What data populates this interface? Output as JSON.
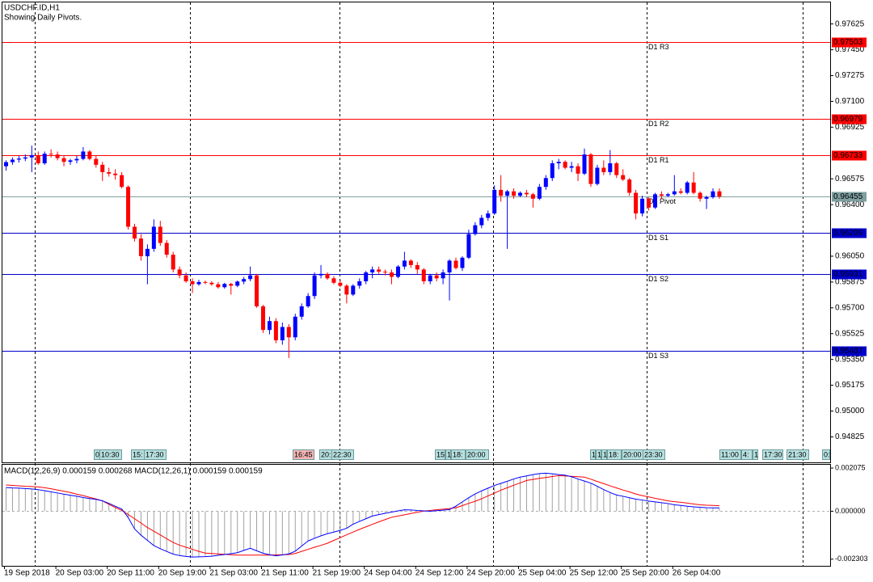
{
  "chart_data": [
    {
      "type": "candlestick",
      "title": "USDCHF.ID,H1",
      "subtitle": "Showing Daily Pivots.",
      "categories": [
        "19 Sep 2018",
        null,
        null,
        null,
        null,
        null,
        null,
        null,
        "20 Sep 03:00",
        null,
        null,
        null,
        null,
        null,
        null,
        null,
        "20 Sep 11:00",
        null,
        null,
        null,
        null,
        null,
        null,
        null,
        "20 Sep 19:00",
        null,
        null,
        null,
        null,
        null,
        null,
        null,
        "21 Sep 03:00",
        null,
        null,
        null,
        null,
        null,
        null,
        null,
        "21 Sep 11:00",
        null,
        null,
        null,
        null,
        null,
        null,
        null,
        "21 Sep 19:00",
        null,
        null,
        null,
        null,
        null,
        null,
        null,
        "24 Sep 04:00",
        null,
        null,
        null,
        null,
        null,
        null,
        null,
        "24 Sep 12:00",
        null,
        null,
        null,
        null,
        null,
        null,
        null,
        "24 Sep 20:00",
        null,
        null,
        null,
        null,
        null,
        null,
        null,
        "25 Sep 04:00",
        null,
        null,
        null,
        null,
        null,
        null,
        null,
        "25 Sep 12:00",
        null,
        null,
        null,
        null,
        null,
        null,
        null,
        "25 Sep 20:00",
        null,
        null,
        null,
        null,
        null,
        null,
        null,
        "26 Sep 04:00",
        null,
        null,
        null,
        null,
        null,
        null,
        null
      ],
      "open": [
        0.9666,
        0.96688,
        0.96705,
        0.96712,
        0.9672,
        0.96735,
        0.9668,
        0.96745,
        0.9674,
        0.96715,
        0.9669,
        0.967,
        0.9671,
        0.9676,
        0.9671,
        0.9667,
        0.9662,
        0.9661,
        0.966,
        0.9652,
        0.9625,
        0.9617,
        0.9605,
        0.961,
        0.9625,
        0.9614,
        0.9606,
        0.9596,
        0.9592,
        0.9588,
        0.9586,
        0.95875,
        0.9587,
        0.9586,
        0.9584,
        0.95862,
        0.9585,
        0.95878,
        0.95895,
        0.9592,
        0.9571,
        0.9555,
        0.9561,
        0.9548,
        0.9557,
        0.955,
        0.9564,
        0.9571,
        0.9578,
        0.9592,
        0.9593,
        0.959,
        0.9587,
        0.9585,
        0.9579,
        0.9585,
        0.9588,
        0.9594,
        0.9596,
        0.95945,
        0.9594,
        0.9591,
        0.9598,
        0.9602,
        0.9599,
        0.9596,
        0.9588,
        0.9592,
        0.959,
        0.9594,
        0.9602,
        0.9597,
        0.9604,
        0.962,
        0.9626,
        0.9631,
        0.9634,
        0.965,
        0.9646,
        0.9649,
        0.9646,
        0.9648,
        0.9647,
        0.9644,
        0.9652,
        0.9658,
        0.9668,
        0.9669,
        0.9665,
        0.9666,
        0.9661,
        0.9674,
        0.9654,
        0.9665,
        0.9662,
        0.9668,
        0.966,
        0.9657,
        0.9648,
        0.9634,
        0.9644,
        0.9638,
        0.9647,
        0.9646,
        0.9647,
        0.9649,
        0.9648,
        0.9655,
        0.9648,
        0.9644,
        0.9645,
        0.9649
      ],
      "high": [
        0.967,
        0.9672,
        0.9673,
        0.9674,
        0.968,
        0.9676,
        0.9676,
        0.96775,
        0.9676,
        0.96735,
        0.9671,
        0.9673,
        0.9679,
        0.9677,
        0.9673,
        0.9669,
        0.9665,
        0.9664,
        0.9662,
        0.9653,
        0.9627,
        0.962,
        0.9613,
        0.963,
        0.9629,
        0.9616,
        0.9608,
        0.9598,
        0.9594,
        0.959,
        0.9589,
        0.95885,
        0.9588,
        0.95875,
        0.9587,
        0.9587,
        0.95885,
        0.9591,
        0.9598,
        0.9593,
        0.9572,
        0.9564,
        0.9563,
        0.956,
        0.9559,
        0.9566,
        0.9573,
        0.958,
        0.9594,
        0.9599,
        0.9594,
        0.95915,
        0.9589,
        0.9586,
        0.9586,
        0.959,
        0.9595,
        0.9598,
        0.9598,
        0.9596,
        0.9596,
        0.9599,
        0.9608,
        0.9603,
        0.9601,
        0.9597,
        0.9593,
        0.9594,
        0.9596,
        0.9603,
        0.9604,
        0.9605,
        0.9623,
        0.9628,
        0.9633,
        0.9636,
        0.9653,
        0.966,
        0.965,
        0.9651,
        0.9649,
        0.965,
        0.9648,
        0.9654,
        0.966,
        0.967,
        0.9671,
        0.967,
        0.9669,
        0.9668,
        0.9678,
        0.9675,
        0.9667,
        0.967,
        0.9677,
        0.9669,
        0.9664,
        0.9658,
        0.965,
        0.9646,
        0.9645,
        0.9648,
        0.9649,
        0.9648,
        0.966,
        0.9651,
        0.9656,
        0.9662,
        0.9649,
        0.9646,
        0.9651,
        0.9651
      ],
      "low": [
        0.9663,
        0.9667,
        0.96685,
        0.96695,
        0.9662,
        0.9667,
        0.9667,
        0.9672,
        0.967,
        0.9666,
        0.9667,
        0.9668,
        0.967,
        0.967,
        0.9665,
        0.9656,
        0.9659,
        0.9657,
        0.9651,
        0.9623,
        0.9615,
        0.9602,
        0.9586,
        0.9608,
        0.9612,
        0.9604,
        0.9594,
        0.959,
        0.9587,
        0.958,
        0.9585,
        0.9586,
        0.9585,
        0.9583,
        0.9583,
        0.9579,
        0.9584,
        0.9586,
        0.9588,
        0.957,
        0.9553,
        0.9552,
        0.9546,
        0.9545,
        0.9536,
        0.9548,
        0.9562,
        0.957,
        0.9576,
        0.959,
        0.9589,
        0.9586,
        0.9584,
        0.9573,
        0.9578,
        0.9583,
        0.9586,
        0.959,
        0.9593,
        0.9592,
        0.9586,
        0.959,
        0.9596,
        0.9597,
        0.9593,
        0.9586,
        0.9586,
        0.9588,
        0.9586,
        0.9575,
        0.9596,
        0.9595,
        0.9603,
        0.9619,
        0.9624,
        0.9629,
        0.9633,
        0.9642,
        0.961,
        0.9644,
        0.9645,
        0.9645,
        0.9638,
        0.9643,
        0.965,
        0.9656,
        0.9664,
        0.9664,
        0.9662,
        0.9656,
        0.966,
        0.9652,
        0.9653,
        0.966,
        0.966,
        0.9658,
        0.9656,
        0.9646,
        0.963,
        0.9632,
        0.9636,
        0.9637,
        0.9644,
        0.9645,
        0.9646,
        0.9647,
        0.9647,
        0.9647,
        0.9642,
        0.9637,
        0.9644,
        0.9644
      ],
      "close": [
        0.96688,
        0.96705,
        0.96712,
        0.9672,
        0.96735,
        0.9668,
        0.96745,
        0.9674,
        0.96715,
        0.9669,
        0.967,
        0.9671,
        0.9676,
        0.9671,
        0.9667,
        0.9662,
        0.9661,
        0.966,
        0.9652,
        0.9625,
        0.9617,
        0.9605,
        0.961,
        0.9625,
        0.9614,
        0.9606,
        0.9596,
        0.9592,
        0.9588,
        0.9586,
        0.95875,
        0.9587,
        0.9586,
        0.9584,
        0.95862,
        0.9585,
        0.95878,
        0.95895,
        0.9592,
        0.9571,
        0.9555,
        0.9561,
        0.9548,
        0.9557,
        0.955,
        0.9564,
        0.9571,
        0.9578,
        0.9592,
        0.9593,
        0.959,
        0.9587,
        0.9585,
        0.9579,
        0.9585,
        0.9588,
        0.9594,
        0.9596,
        0.95945,
        0.9594,
        0.9591,
        0.9598,
        0.9602,
        0.9599,
        0.9596,
        0.9588,
        0.9592,
        0.959,
        0.9594,
        0.9602,
        0.9597,
        0.9604,
        0.962,
        0.9626,
        0.9631,
        0.9634,
        0.965,
        0.9646,
        0.9649,
        0.9646,
        0.9648,
        0.9647,
        0.9644,
        0.9652,
        0.9658,
        0.9668,
        0.9669,
        0.9665,
        0.9666,
        0.9661,
        0.9674,
        0.9654,
        0.9665,
        0.9662,
        0.9668,
        0.966,
        0.9657,
        0.9648,
        0.9634,
        0.9644,
        0.9638,
        0.9647,
        0.9646,
        0.9647,
        0.9649,
        0.9648,
        0.9655,
        0.9648,
        0.9644,
        0.9645,
        0.9649,
        0.96455
      ],
      "up_color": "#0000ff",
      "down_color": "#ff0000",
      "ylim": [
        0.94652,
        0.97771
      ],
      "yticks": [
        0.97625,
        {
          "value": 0.9745,
          "label": "0.97450"
        },
        0.97275,
        {
          "value": 0.971,
          "label": "0.97100"
        },
        0.96925,
        0.96575,
        {
          "value": 0.964,
          "label": "0.96400"
        },
        {
          "value": 0.9605,
          "label": "0.96050"
        },
        0.95875,
        {
          "value": 0.957,
          "label": "0.95700"
        },
        0.95525,
        {
          "value": 0.9535,
          "label": "0.95350"
        },
        0.95175,
        {
          "value": 0.95,
          "label": "0.95000"
        },
        0.94825
      ],
      "levels": [
        {
          "name": "D1 R3",
          "value": 0.97503,
          "color": "#ff0000"
        },
        {
          "name": "D1 R2",
          "value": 0.96979,
          "color": "#ff0000"
        },
        {
          "name": "D1 R1",
          "value": 0.96733,
          "color": "#ff0000"
        },
        {
          "name": "D1 Pivot",
          "value": 0.96455,
          "color": "#7f9f9f"
        },
        {
          "name": "D1 S1",
          "value": 0.96209,
          "color": "#0000cd"
        },
        {
          "name": "D1 S2",
          "value": 0.95931,
          "color": "#0000cd"
        },
        {
          "name": "D1 S3",
          "value": 0.95407,
          "color": "#0000cd"
        }
      ],
      "events": [
        "0",
        "10:30",
        "15:",
        "17:30",
        "16:45",
        "20:",
        "22:30",
        "15:",
        "1",
        "18:",
        "20:00",
        "1",
        "1",
        "1",
        "18:",
        "20:00",
        "23:30",
        "11:00",
        "4:",
        "1",
        "17:30",
        "21:30",
        "0:"
      ]
    },
    {
      "type": "macd",
      "title": "MACD(12,26,9) 0.000159 0.000268 MACD(12,26,1) 0.000159 0.000159",
      "series": [
        {
          "style": "histogram",
          "color": "#a0a0a0",
          "values": [
            0.00114,
            0.00112,
            0.00111,
            0.00109,
            0.00107,
            0.00104,
            0.00099,
            0.00093,
            0.00088,
            0.00082,
            0.00077,
            0.00072,
            0.00066,
            0.00061,
            0.00057,
            0.0005,
            0.00038,
            0.00024,
            0.00011,
            -0.0003,
            -0.00085,
            -0.00115,
            -0.0014,
            -0.00165,
            -0.0018,
            -0.00193,
            -0.00206,
            -0.00213,
            -0.00217,
            -0.0022,
            -0.00219,
            -0.00218,
            -0.00216,
            -0.00212,
            -0.00208,
            -0.00204,
            -0.00199,
            -0.00188,
            -0.00178,
            -0.0019,
            -0.00202,
            -0.00209,
            -0.00214,
            -0.0021,
            -0.00205,
            -0.00192,
            -0.00167,
            -0.00143,
            -0.0013,
            -0.00118,
            -0.00108,
            -0.001,
            -0.00092,
            -0.00082,
            -0.00062,
            -0.00049,
            -0.00036,
            -0.00023,
            -0.00016,
            -0.0001,
            -4e-05,
            2e-05,
            7e-05,
            6e-05,
            4e-05,
            2e-05,
            0,
            3e-05,
            5e-05,
            8e-05,
            0.00025,
            0.00045,
            0.00065,
            0.00083,
            0.00098,
            0.00111,
            0.00124,
            0.00134,
            0.00144,
            0.00155,
            0.00164,
            0.0017,
            0.00176,
            0.00181,
            0.00183,
            0.0018,
            0.00176,
            0.00173,
            0.00166,
            0.00155,
            0.00145,
            0.00135,
            0.0012,
            0.00104,
            0.0009,
            0.00078,
            0.00072,
            0.00065,
            0.00058,
            0.00054,
            0.00049,
            0.00045,
            0.00041,
            0.00037,
            0.00031,
            0.00028,
            0.00024,
            0.00021,
            0.00019,
            0.00017,
            0.000165,
            0.000159
          ]
        },
        {
          "style": "line",
          "color": "#ff0000",
          "values": [
            0.00126,
            0.00124,
            0.00122,
            0.0012,
            0.00119,
            0.00117,
            0.00113,
            0.00108,
            0.00102,
            0.00096,
            0.0009,
            0.00082,
            0.00075,
            0.00067,
            0.00059,
            0.0005,
            0.00033,
            0.00018,
            4e-05,
            -0.00016,
            -0.00036,
            -0.00057,
            -0.00078,
            -0.00096,
            -0.00114,
            -0.00132,
            -0.0015,
            -0.00163,
            -0.00173,
            -0.00183,
            -0.00193,
            -0.00201,
            -0.00203,
            -0.00205,
            -0.00207,
            -0.00209,
            -0.00211,
            -0.00211,
            -0.00211,
            -0.00211,
            -0.00211,
            -0.00211,
            -0.0021,
            -0.00209,
            -0.00208,
            -0.00203,
            -0.00193,
            -0.00183,
            -0.00173,
            -0.00164,
            -0.00154,
            -0.0014,
            -0.00127,
            -0.00113,
            -0.001,
            -0.00087,
            -0.00075,
            -0.00063,
            -0.00051,
            -0.0004,
            -0.00029,
            -0.00023,
            -0.00017,
            -0.00011,
            -5e-05,
            1e-05,
            4e-05,
            7e-05,
            0.0001,
            0.00013,
            0.00017,
            0.00027,
            0.00038,
            0.00048,
            0.0006,
            0.00074,
            0.00087,
            0.00101,
            0.00113,
            0.00125,
            0.00136,
            0.00148,
            0.00153,
            0.00158,
            0.00162,
            0.00167,
            0.00171,
            0.0017,
            0.00168,
            0.00166,
            0.00164,
            0.00154,
            0.00143,
            0.00133,
            0.00122,
            0.00112,
            0.00102,
            0.00093,
            0.00083,
            0.00075,
            0.00069,
            0.00062,
            0.00056,
            0.0005,
            0.00046,
            0.00043,
            0.00039,
            0.00035,
            0.00031,
            0.00029,
            0.00028,
            0.000268
          ]
        },
        {
          "style": "line",
          "color": "#0000ff",
          "values": [
            0.00114,
            0.00112,
            0.00111,
            0.00109,
            0.00107,
            0.00104,
            0.00099,
            0.00093,
            0.00088,
            0.00082,
            0.00077,
            0.00072,
            0.00066,
            0.00061,
            0.00057,
            0.0005,
            0.00038,
            0.00024,
            0.00011,
            -0.0003,
            -0.00085,
            -0.00115,
            -0.0014,
            -0.00165,
            -0.0018,
            -0.00193,
            -0.00206,
            -0.00213,
            -0.00217,
            -0.0022,
            -0.00219,
            -0.00218,
            -0.00216,
            -0.00212,
            -0.00208,
            -0.00204,
            -0.00199,
            -0.00188,
            -0.00178,
            -0.0019,
            -0.00202,
            -0.00209,
            -0.00214,
            -0.0021,
            -0.00205,
            -0.00192,
            -0.00167,
            -0.00143,
            -0.0013,
            -0.00118,
            -0.00108,
            -0.001,
            -0.00092,
            -0.00082,
            -0.00062,
            -0.00049,
            -0.00036,
            -0.00023,
            -0.00016,
            -0.0001,
            -4e-05,
            2e-05,
            7e-05,
            6e-05,
            4e-05,
            2e-05,
            0,
            3e-05,
            5e-05,
            8e-05,
            0.00025,
            0.00045,
            0.00065,
            0.00083,
            0.00098,
            0.00111,
            0.00124,
            0.00134,
            0.00144,
            0.00155,
            0.00164,
            0.0017,
            0.00176,
            0.00181,
            0.00183,
            0.0018,
            0.00176,
            0.00173,
            0.00166,
            0.00155,
            0.00145,
            0.00135,
            0.0012,
            0.00104,
            0.0009,
            0.00078,
            0.00072,
            0.00065,
            0.00058,
            0.00054,
            0.00049,
            0.00045,
            0.00041,
            0.00037,
            0.00031,
            0.00028,
            0.00024,
            0.00021,
            0.00019,
            0.00017,
            0.000165,
            0.000159
          ]
        }
      ],
      "ylim": [
        -0.002623,
        0.002232
      ],
      "yticks": [
        0.002075,
        {
          "value": 0,
          "label": "0.000000"
        },
        -0.002303
      ]
    }
  ]
}
